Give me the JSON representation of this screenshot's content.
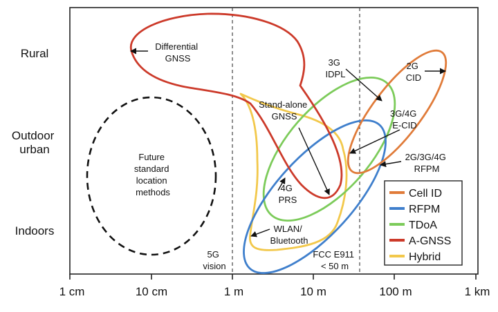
{
  "y_labels": {
    "rural": "Rural",
    "outdoor": [
      "Outdoor",
      "urban"
    ],
    "indoors": "Indoors"
  },
  "x_ticks": [
    "1 cm",
    "10 cm",
    "1 m",
    "10 m",
    "100 m",
    "1 km"
  ],
  "annotations": {
    "differential_gnss": [
      "Differential",
      "GNSS"
    ],
    "idpl_3g": [
      "3G",
      "IDPL"
    ],
    "cid_2g": [
      "2G",
      "CID"
    ],
    "standalone_gnss": [
      "Stand-alone",
      "GNSS"
    ],
    "ecid": [
      "3G/4G",
      "E-CID"
    ],
    "rfpm": [
      "2G/3G/4G",
      "RFPM"
    ],
    "prs_4g": [
      "4G",
      "PRS"
    ],
    "wlan": [
      "WLAN/",
      "Bluetooth"
    ],
    "future": [
      "Future",
      "standard",
      "location",
      "methods"
    ],
    "vision_5g": [
      "5G",
      "vision"
    ],
    "fcc": [
      "FCC E911",
      "< 50 m"
    ]
  },
  "legend": [
    {
      "label": "Cell ID",
      "color": "#E07B39"
    },
    {
      "label": "RFPM",
      "color": "#3F7FCC"
    },
    {
      "label": "TDoA",
      "color": "#7CCB5A"
    },
    {
      "label": "A-GNSS",
      "color": "#CC3A2A"
    },
    {
      "label": "Hybrid",
      "color": "#F2C84B"
    }
  ]
}
